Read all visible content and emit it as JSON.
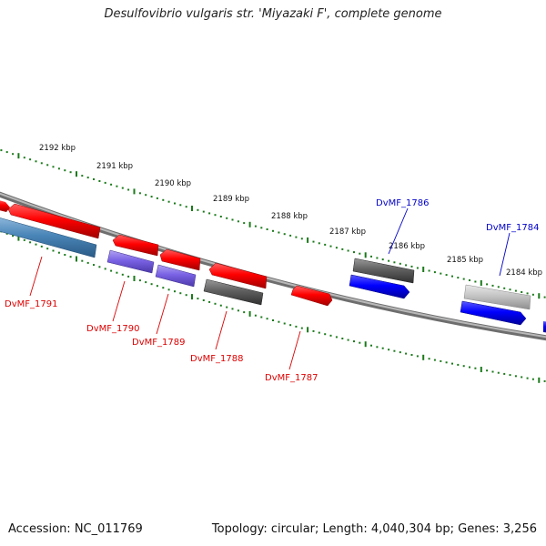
{
  "title": "Desulfovibrio vulgaris str. 'Miyazaki F', complete genome",
  "footer": {
    "accession": "Accession: NC_011769",
    "summary": "Topology: circular; Length: 4,040,304 bp; Genes: 3,256"
  },
  "colors": {
    "forward_gene": "#0000ee",
    "reverse_gene": "#ee0000",
    "tick": "#1a7a1a",
    "backbone": "#8a8a8a"
  },
  "kbp_labels": [
    "2192 kbp",
    "2191 kbp",
    "2190 kbp",
    "2189 kbp",
    "2188 kbp",
    "2187 kbp",
    "2186 kbp",
    "2185 kbp",
    "2184 kbp"
  ],
  "gene_labels": [
    {
      "text": "DvMF_1786",
      "color": "#0000cc"
    },
    {
      "text": "DvMF_1784",
      "color": "#0000cc"
    },
    {
      "text": "DvMF_1791",
      "color": "#dd0000"
    },
    {
      "text": "DvMF_1790",
      "color": "#dd0000"
    },
    {
      "text": "DvMF_1789",
      "color": "#dd0000"
    },
    {
      "text": "DvMF_1788",
      "color": "#dd0000"
    },
    {
      "text": "DvMF_1787",
      "color": "#dd0000"
    }
  ]
}
